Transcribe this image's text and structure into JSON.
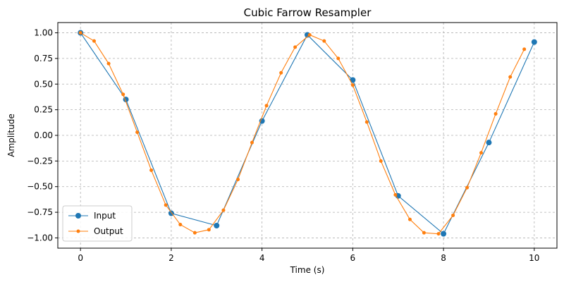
{
  "chart_data": {
    "type": "line",
    "title": "Cubic Farrow Resampler",
    "xlabel": "Time (s)",
    "ylabel": "Amplitude",
    "xlim": [
      -0.5,
      10.5
    ],
    "ylim": [
      -1.1,
      1.1
    ],
    "xticks": [
      0,
      2,
      4,
      6,
      8,
      10
    ],
    "xtick_labels": [
      "0",
      "2",
      "4",
      "6",
      "8",
      "10"
    ],
    "yticks": [
      -1.0,
      -0.75,
      -0.5,
      -0.25,
      0.0,
      0.25,
      0.5,
      0.75,
      1.0
    ],
    "ytick_labels": [
      "−1.00",
      "−0.75",
      "−0.50",
      "−0.25",
      "0.00",
      "0.25",
      "0.50",
      "0.75",
      "1.00"
    ],
    "grid": true,
    "legend_position": "lower-left",
    "series": [
      {
        "name": "Input",
        "color": "#1f77b4",
        "marker_size": 4,
        "x": [
          0,
          1,
          2,
          3,
          4,
          5,
          6,
          7,
          8,
          9,
          10
        ],
        "y": [
          1.0,
          0.35,
          -0.76,
          -0.88,
          0.14,
          0.98,
          0.54,
          -0.59,
          -0.96,
          -0.07,
          0.91
        ]
      },
      {
        "name": "Output",
        "color": "#ff7f0e",
        "marker_size": 2.5,
        "x": [
          0,
          0.3,
          0.62,
          0.94,
          1.25,
          1.56,
          1.88,
          2.2,
          2.52,
          2.83,
          3.15,
          3.47,
          3.78,
          4.1,
          4.42,
          4.73,
          5.05,
          5.37,
          5.68,
          6.0,
          6.31,
          6.62,
          6.94,
          7.26,
          7.57,
          7.89,
          8.21,
          8.52,
          8.83,
          9.15,
          9.47,
          9.78
        ],
        "y": [
          1.0,
          0.92,
          0.7,
          0.4,
          0.03,
          -0.34,
          -0.68,
          -0.87,
          -0.95,
          -0.92,
          -0.73,
          -0.43,
          -0.07,
          0.29,
          0.61,
          0.86,
          0.98,
          0.92,
          0.75,
          0.49,
          0.13,
          -0.25,
          -0.58,
          -0.82,
          -0.95,
          -0.96,
          -0.78,
          -0.51,
          -0.17,
          0.21,
          0.57,
          0.84
        ]
      }
    ]
  }
}
